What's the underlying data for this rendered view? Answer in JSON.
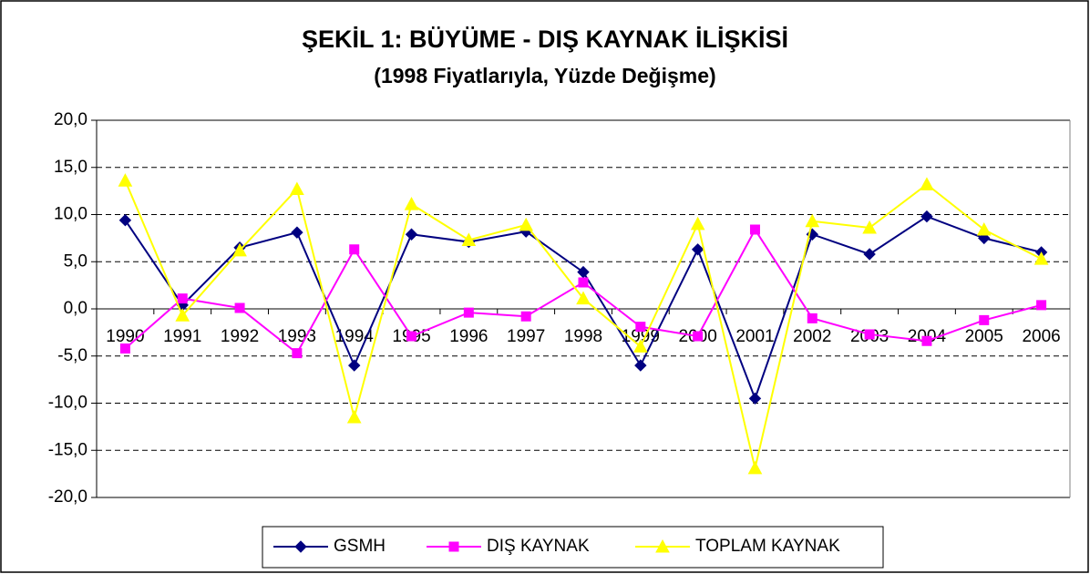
{
  "chart_data": {
    "type": "line",
    "title": "ŞEKİL 1: BÜYÜME - DIŞ KAYNAK İLİŞKİSİ",
    "subtitle": "(1998 Fiyatlarıyla, Yüzde Değişme)",
    "categories": [
      "1990",
      "1991",
      "1992",
      "1993",
      "1994",
      "1995",
      "1996",
      "1997",
      "1998",
      "1999",
      "2000",
      "2001",
      "2002",
      "2003",
      "2004",
      "2005",
      "2006"
    ],
    "series": [
      {
        "name": "GSMH",
        "color": "#000080",
        "marker": "diamond",
        "values": [
          9.4,
          0.4,
          6.5,
          8.1,
          -6.0,
          7.9,
          7.1,
          8.2,
          3.9,
          -6.0,
          6.3,
          -9.5,
          7.9,
          5.8,
          9.8,
          7.5,
          6.0
        ]
      },
      {
        "name": "DIŞ KAYNAK",
        "color": "#ff00ff",
        "marker": "square",
        "values": [
          -4.2,
          1.1,
          0.1,
          -4.7,
          6.3,
          -2.9,
          -0.4,
          -0.8,
          2.8,
          -1.9,
          -2.9,
          8.4,
          -1.0,
          -2.7,
          -3.4,
          -1.2,
          0.4
        ]
      },
      {
        "name": "TOPLAM KAYNAK",
        "color": "#ffff00",
        "marker": "triangle",
        "values": [
          13.6,
          -0.7,
          6.2,
          12.7,
          -11.5,
          11.1,
          7.3,
          8.9,
          1.1,
          -4.0,
          9.0,
          -16.9,
          9.3,
          8.6,
          13.2,
          8.4,
          5.3
        ]
      }
    ],
    "ylim": [
      -20,
      20
    ],
    "yticks": [
      {
        "value": -20,
        "label": "-20,0"
      },
      {
        "value": -15,
        "label": "-15,0"
      },
      {
        "value": -10,
        "label": "-10,0"
      },
      {
        "value": -5,
        "label": "-5,0"
      },
      {
        "value": 0,
        "label": "0,0"
      },
      {
        "value": 5,
        "label": "5,0"
      },
      {
        "value": 10,
        "label": "10,0"
      },
      {
        "value": 15,
        "label": "15,0"
      },
      {
        "value": 20,
        "label": "20,0"
      }
    ],
    "grid": true,
    "legend": "bottom"
  }
}
